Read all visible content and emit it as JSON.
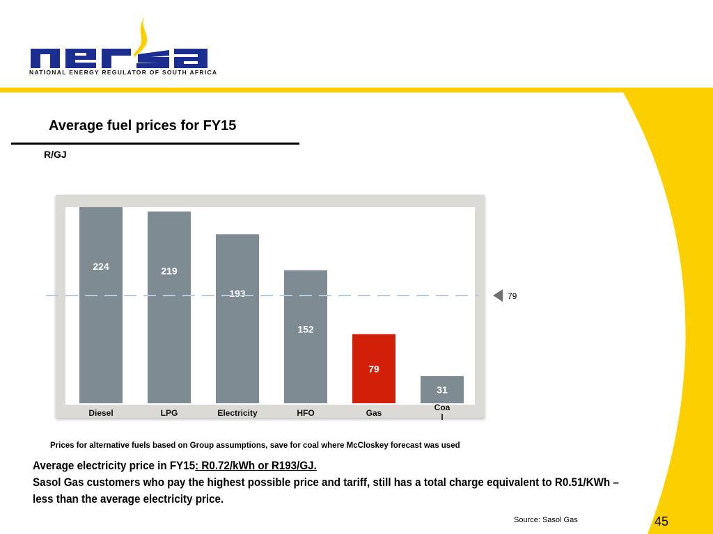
{
  "logo": {
    "wordmark": "nersa",
    "tagline": "NATIONAL ENERGY REGULATOR OF SOUTH AFRICA"
  },
  "colors": {
    "brand_blue": "#1b2d8f",
    "brand_yellow": "#fbcf00",
    "bar_grey": "#7f8b92",
    "bar_highlight": "#d21f07",
    "reference_line": "#b7cbe0"
  },
  "slide": {
    "title": "Average fuel prices for FY15",
    "unit_label": "R/GJ",
    "footnote": "Prices for alternative fuels based on Group assumptions, save for coal where McCloskey forecast was used",
    "body": {
      "line1_prefix": "Average electricity price in FY15",
      "line1_underlined": ": R0.72/kWh or R193/GJ.",
      "line2": "Sasol Gas customers who pay the highest possible price and tariff, still has a total charge equivalent to R0.51/KWh – less than the average electricity price."
    },
    "source": "Source: Sasol Gas",
    "page_number": "45"
  },
  "chart_data": {
    "type": "bar",
    "categories": [
      "Diesel",
      "LPG",
      "Electricity",
      "HFO",
      "Gas",
      "Coa\nl"
    ],
    "values": [
      224,
      219,
      193,
      152,
      79,
      31
    ],
    "data_labels": [
      "224",
      "219",
      "193",
      "152",
      "79",
      "31"
    ],
    "highlight_index": 4,
    "ylabel": "R/GJ",
    "reference_line": {
      "value": 79,
      "label": "79",
      "style": "dashed"
    },
    "grid": false
  }
}
